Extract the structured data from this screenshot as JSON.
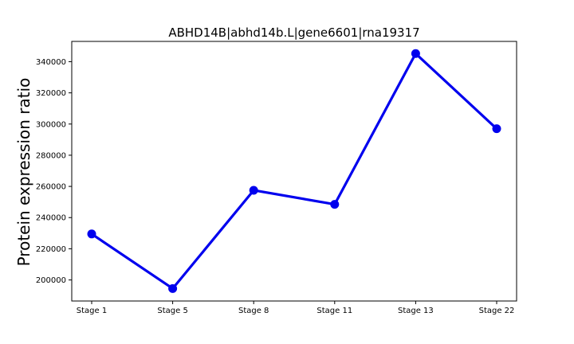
{
  "chart_data": {
    "type": "line",
    "title": "ABHD14B|abhd14b.L|gene6601|rna19317",
    "xlabel": "",
    "ylabel": "Protein expression ratio",
    "categories": [
      "Stage 1",
      "Stage 5",
      "Stage 8",
      "Stage 11",
      "Stage 13",
      "Stage 22"
    ],
    "series": [
      {
        "values": [
          229500,
          194500,
          257500,
          248500,
          345200,
          297000
        ]
      }
    ],
    "ylim": [
      186500,
      353000
    ],
    "yticks": [
      200000,
      220000,
      240000,
      260000,
      280000,
      300000,
      320000,
      340000
    ],
    "ytick_labels": [
      "200000",
      "220000",
      "240000",
      "260000",
      "280000",
      "300000",
      "320000",
      "340000"
    ],
    "grid": false,
    "line_color": "#0000ee"
  }
}
